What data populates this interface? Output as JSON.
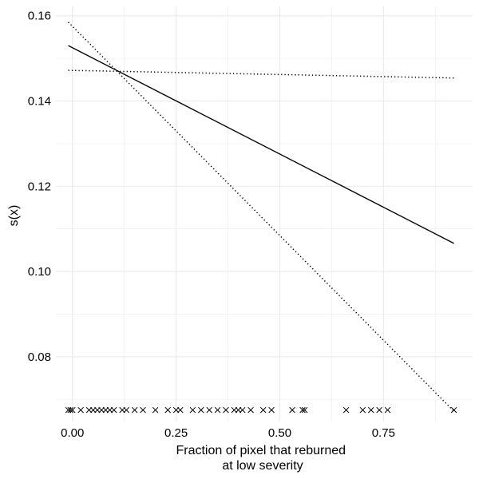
{
  "chart_data": {
    "type": "line",
    "title": "",
    "xlabel_lines": [
      "Fraction of pixel that reburned",
      "at low severity"
    ],
    "ylabel": "s(x)",
    "xlim": [
      -0.04,
      0.965
    ],
    "ylim": [
      0.0648,
      0.1622
    ],
    "x_ticks": [
      0.0,
      0.25,
      0.5,
      0.75
    ],
    "x_tick_labels": [
      "0.00",
      "0.25",
      "0.50",
      "0.75"
    ],
    "y_ticks": [
      0.08,
      0.1,
      0.12,
      0.14,
      0.16
    ],
    "y_tick_labels": [
      "0.08",
      "0.10",
      "0.12",
      "0.14",
      "0.16"
    ],
    "grid": true,
    "legend": "none",
    "series": [
      {
        "style": "solid",
        "x": [
          -0.01,
          0.92
        ],
        "y": [
          0.153,
          0.1066
        ]
      },
      {
        "style": "dotted",
        "x": [
          -0.01,
          0.92
        ],
        "y": [
          0.1472,
          0.1454
        ]
      },
      {
        "style": "dotted",
        "x": [
          -0.01,
          0.92
        ],
        "y": [
          0.1585,
          0.0672
        ]
      }
    ],
    "rug": {
      "marker": "x",
      "y": 0.0675,
      "x": [
        -0.01,
        -0.005,
        0.0,
        0.02,
        0.04,
        0.05,
        0.06,
        0.07,
        0.08,
        0.09,
        0.1,
        0.12,
        0.13,
        0.15,
        0.17,
        0.2,
        0.23,
        0.25,
        0.26,
        0.29,
        0.31,
        0.33,
        0.35,
        0.37,
        0.39,
        0.4,
        0.41,
        0.43,
        0.46,
        0.48,
        0.53,
        0.555,
        0.56,
        0.66,
        0.7,
        0.72,
        0.74,
        0.76,
        0.92
      ]
    },
    "colors": {
      "line": "#000000",
      "grid": "#ebebeb",
      "text": "#000000"
    }
  }
}
